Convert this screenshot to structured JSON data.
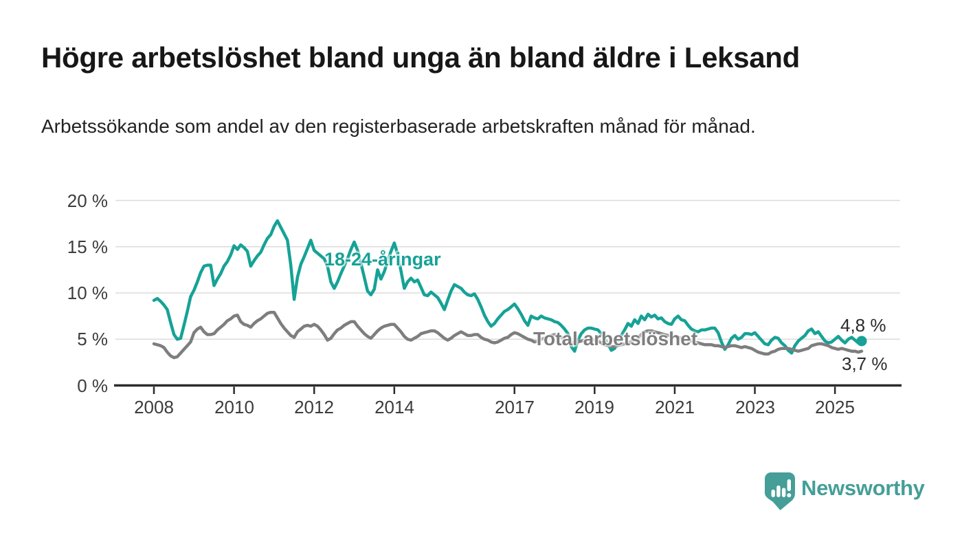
{
  "chart_data": {
    "type": "line",
    "title": "Högre arbetslöshet bland unga än bland äldre i Leksand",
    "subtitle": "Arbetssökande som andel av den registerbaserade arbetskraften månad för månad.",
    "unit": "%",
    "grid": true,
    "legend_position": "inline-labels-on-lines",
    "x_axis": {
      "start_month": "2008-01",
      "end_month": "2025-09",
      "months_per_point": 1,
      "ticks": [
        "2008",
        "2010",
        "2012",
        "2014",
        "2017",
        "2019",
        "2021",
        "2023",
        "2025"
      ]
    },
    "y_axis": {
      "range": [
        0,
        20
      ],
      "ticks": [
        {
          "label": "0 %",
          "value": 0
        },
        {
          "label": "5 %",
          "value": 5
        },
        {
          "label": "10 %",
          "value": 10
        },
        {
          "label": "15 %",
          "value": 15
        },
        {
          "label": "20 %",
          "value": 20
        }
      ]
    },
    "series": [
      {
        "name": "18-24-åringar",
        "color": "#16a296",
        "end_label": "4,8 %",
        "end_value": 4.8,
        "end_marker": "dot",
        "values": [
          9.2,
          9.4,
          9.1,
          8.7,
          8.2,
          6.8,
          5.5,
          5.0,
          5.1,
          6.5,
          8.0,
          9.6,
          10.3,
          11.2,
          12.2,
          12.9,
          13.0,
          13.0,
          10.8,
          11.5,
          12.1,
          12.9,
          13.4,
          14.1,
          15.1,
          14.7,
          15.2,
          14.9,
          14.5,
          12.9,
          13.5,
          14.0,
          14.4,
          15.2,
          15.9,
          16.3,
          17.2,
          17.8,
          17.1,
          16.4,
          15.7,
          13.0,
          9.3,
          11.7,
          13.1,
          13.9,
          14.8,
          15.7,
          14.6,
          14.3,
          14.0,
          13.7,
          12.9,
          11.2,
          10.5,
          11.2,
          12.1,
          12.9,
          13.7,
          14.7,
          15.5,
          14.6,
          13.2,
          11.7,
          10.2,
          9.8,
          10.4,
          12.5,
          11.5,
          12.3,
          13.4,
          14.5,
          15.4,
          14.2,
          12.4,
          10.5,
          11.2,
          11.6,
          11.2,
          11.4,
          10.6,
          9.8,
          9.7,
          10.1,
          9.8,
          9.5,
          8.9,
          8.2,
          9.2,
          10.2,
          10.9,
          10.7,
          10.5,
          10.1,
          9.8,
          9.7,
          9.9,
          9.3,
          8.5,
          7.6,
          6.9,
          6.4,
          6.7,
          7.2,
          7.6,
          8.0,
          8.2,
          8.5,
          8.8,
          8.3,
          7.7,
          7.0,
          6.5,
          7.5,
          7.3,
          7.2,
          7.5,
          7.3,
          7.2,
          7.1,
          6.9,
          6.8,
          6.5,
          6.1,
          5.6,
          4.2,
          3.7,
          4.9,
          5.6,
          6.0,
          6.2,
          6.2,
          6.1,
          6.0,
          5.6,
          5.1,
          4.5,
          3.8,
          4.0,
          4.7,
          5.4,
          6.0,
          6.7,
          6.4,
          7.1,
          6.7,
          7.5,
          7.1,
          7.7,
          7.4,
          7.6,
          7.2,
          7.3,
          6.9,
          6.7,
          6.6,
          7.2,
          7.5,
          7.1,
          7.0,
          6.5,
          6.1,
          5.9,
          5.8,
          6.0,
          6.0,
          6.1,
          6.2,
          6.2,
          5.7,
          4.7,
          3.9,
          4.4,
          5.1,
          5.4,
          5.0,
          5.2,
          5.6,
          5.6,
          5.5,
          5.7,
          5.3,
          4.9,
          4.5,
          4.4,
          4.9,
          5.2,
          5.1,
          4.6,
          4.3,
          3.8,
          3.5,
          4.3,
          4.8,
          5.1,
          5.4,
          5.9,
          6.1,
          5.6,
          5.8,
          5.3,
          4.8,
          4.6,
          4.7,
          5.0,
          5.3,
          4.9,
          4.6,
          5.0,
          5.2,
          4.9,
          4.6,
          4.8
        ]
      },
      {
        "name": "Total arbetslöshet",
        "color": "#7e7e7e",
        "end_label": "3,7 %",
        "end_value": 3.7,
        "end_marker": "none",
        "values": [
          4.5,
          4.4,
          4.3,
          4.1,
          3.6,
          3.2,
          3.0,
          3.1,
          3.5,
          3.9,
          4.3,
          4.7,
          5.7,
          6.1,
          6.3,
          5.8,
          5.5,
          5.5,
          5.6,
          6.0,
          6.3,
          6.6,
          7.0,
          7.2,
          7.5,
          7.6,
          6.9,
          6.6,
          6.5,
          6.3,
          6.7,
          7.0,
          7.2,
          7.5,
          7.8,
          7.9,
          7.9,
          7.3,
          6.7,
          6.2,
          5.8,
          5.4,
          5.2,
          5.8,
          6.1,
          6.4,
          6.5,
          6.4,
          6.6,
          6.4,
          6.0,
          5.5,
          4.9,
          5.1,
          5.6,
          6.0,
          6.2,
          6.5,
          6.7,
          6.9,
          6.9,
          6.4,
          6.0,
          5.6,
          5.3,
          5.1,
          5.5,
          5.9,
          6.2,
          6.4,
          6.5,
          6.6,
          6.6,
          6.2,
          5.8,
          5.3,
          5.0,
          4.9,
          5.1,
          5.3,
          5.6,
          5.7,
          5.8,
          5.9,
          5.9,
          5.7,
          5.4,
          5.1,
          4.9,
          5.1,
          5.4,
          5.6,
          5.8,
          5.6,
          5.4,
          5.4,
          5.5,
          5.5,
          5.2,
          5.0,
          4.9,
          4.7,
          4.6,
          4.7,
          4.9,
          5.1,
          5.2,
          5.5,
          5.7,
          5.6,
          5.4,
          5.2,
          5.0,
          4.9,
          4.7,
          4.8,
          5.0,
          5.1,
          5.3,
          5.4,
          5.5,
          5.4,
          5.2,
          5.1,
          4.9,
          4.7,
          4.6,
          4.7,
          4.8,
          4.9,
          5.0,
          5.0,
          4.9,
          4.8,
          4.6,
          4.4,
          4.3,
          4.2,
          4.2,
          4.3,
          4.4,
          4.5,
          4.6,
          4.7,
          4.9,
          5.1,
          5.5,
          5.8,
          5.9,
          5.9,
          5.8,
          5.7,
          5.6,
          5.5,
          5.4,
          5.4,
          5.3,
          5.2,
          5.1,
          5.0,
          4.9,
          4.8,
          4.7,
          4.6,
          4.5,
          4.4,
          4.4,
          4.4,
          4.3,
          4.3,
          4.2,
          4.1,
          4.2,
          4.3,
          4.3,
          4.2,
          4.1,
          4.2,
          4.1,
          4.0,
          3.8,
          3.6,
          3.5,
          3.4,
          3.4,
          3.6,
          3.7,
          3.9,
          4.0,
          4.0,
          4.0,
          3.9,
          3.8,
          3.7,
          3.8,
          3.9,
          4.0,
          4.3,
          4.4,
          4.5,
          4.5,
          4.4,
          4.3,
          4.1,
          4.0,
          3.9,
          4.0,
          3.9,
          3.8,
          3.7,
          3.7,
          3.6,
          3.7
        ]
      }
    ],
    "colors": {
      "grid": "#dbdbdb",
      "axis": "#2b2b2b",
      "tick_text": "#3c3c3c",
      "end_label_text": "#2b2b2b"
    }
  },
  "footer": {
    "brand": "Newsworthy",
    "logo_icon": "speech-bubble-bar-chart-icon",
    "brand_color": "#459e98"
  }
}
